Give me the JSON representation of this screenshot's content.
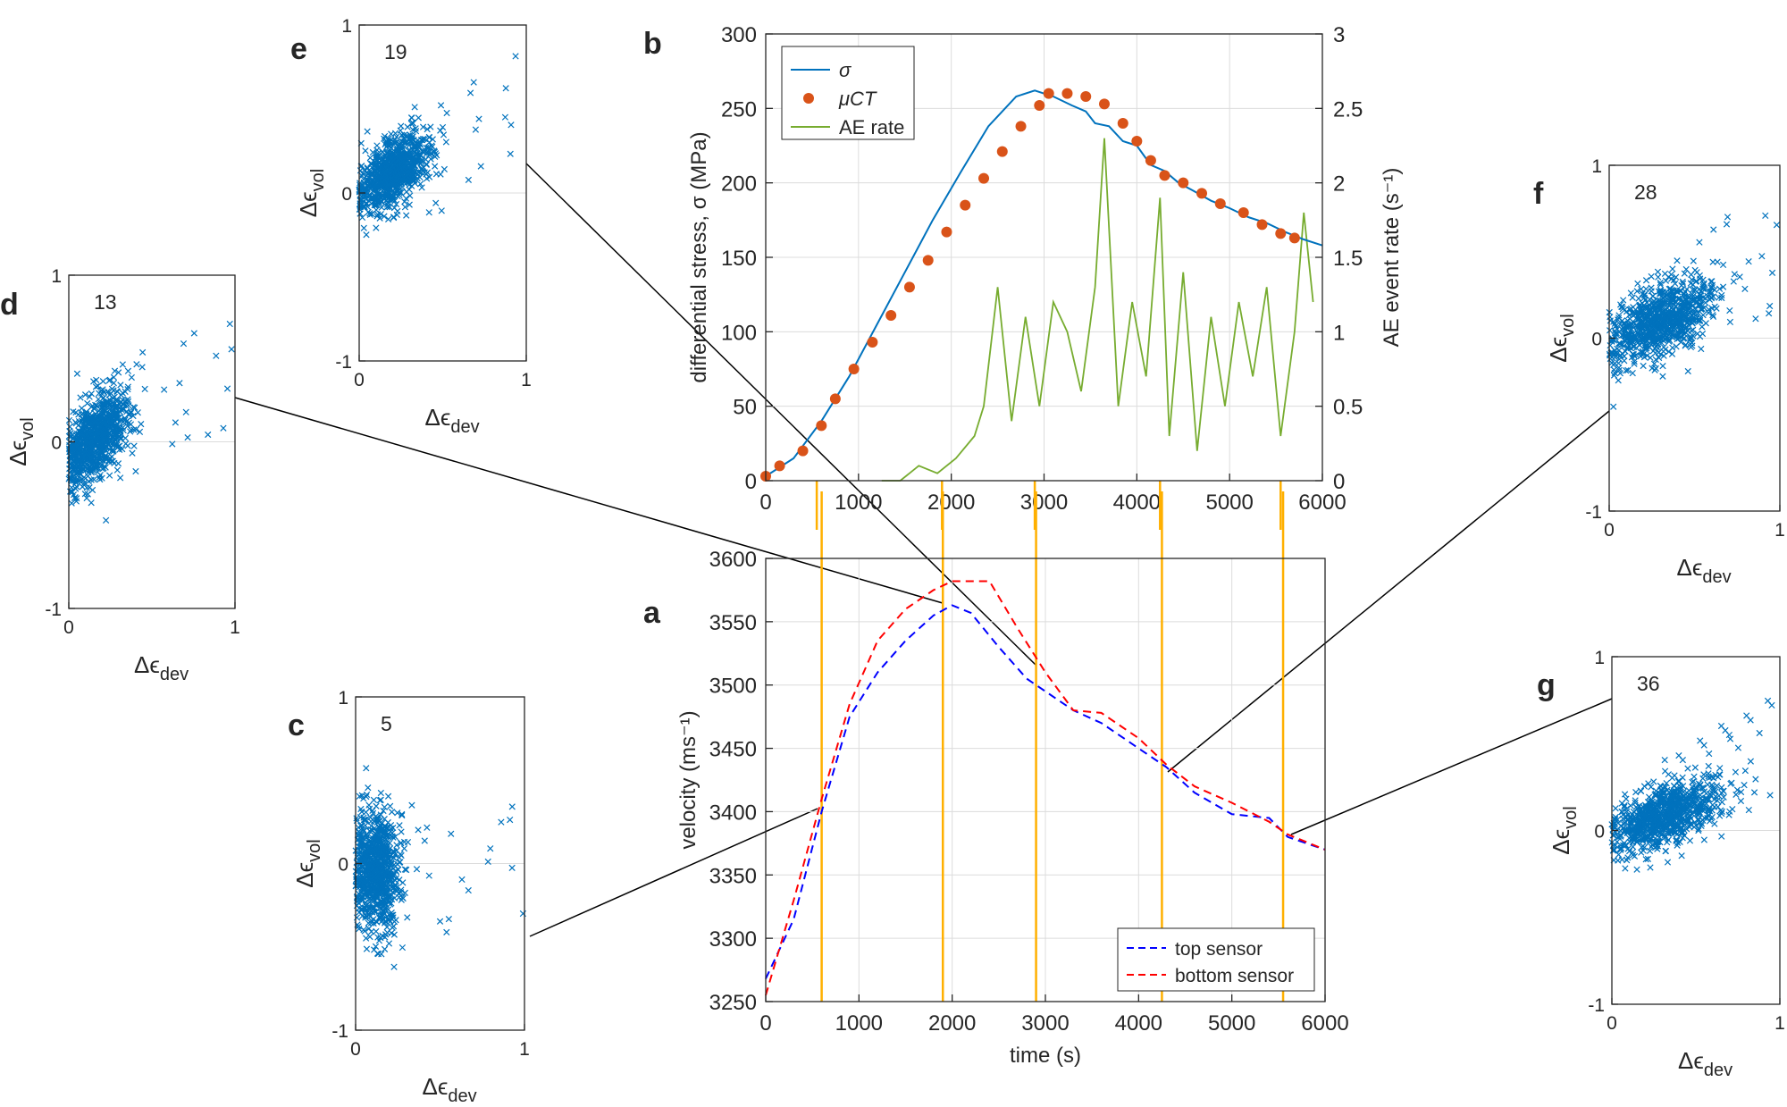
{
  "chart_data": [
    {
      "panel": "b",
      "type": "line",
      "xlabel": "time (s)",
      "ylabel": "differential stress, σ (MPa)",
      "ylabel_right": "AE event rate (s⁻¹)",
      "xlim": [
        0,
        6000
      ],
      "ylim": [
        0,
        300
      ],
      "ylim_right": [
        0,
        3
      ],
      "xticks": [
        "0",
        "1000",
        "2000",
        "3000",
        "4000",
        "5000",
        "6000"
      ],
      "yticks": [
        "0",
        "50",
        "100",
        "150",
        "200",
        "250",
        "300"
      ],
      "yticks_right": [
        "0",
        "0.5",
        "1",
        "1.5",
        "2",
        "2.5",
        "3"
      ],
      "grid": true,
      "legend": "top-left",
      "series": [
        {
          "name": "σ",
          "color": "#0072BD",
          "style": "solid",
          "x": [
            0,
            300,
            600,
            900,
            1200,
            1500,
            1800,
            2100,
            2400,
            2700,
            2900,
            3100,
            3300,
            3450,
            3550,
            3700,
            3850,
            4000,
            4150,
            4300,
            4450,
            4600,
            4800,
            5000,
            5200,
            5400,
            5600,
            5800,
            6000
          ],
          "y": [
            3,
            15,
            40,
            70,
            105,
            140,
            175,
            207,
            238,
            258,
            262,
            258,
            252,
            248,
            240,
            238,
            228,
            225,
            212,
            208,
            200,
            195,
            188,
            183,
            177,
            173,
            167,
            162,
            158
          ]
        },
        {
          "name": "μCT",
          "color": "#D95319",
          "style": "markers",
          "x": [
            0,
            150,
            400,
            600,
            750,
            950,
            1150,
            1350,
            1550,
            1750,
            1950,
            2150,
            2350,
            2550,
            2750,
            2950,
            3050,
            3250,
            3450,
            3650,
            3850,
            4000,
            4150,
            4300,
            4500,
            4700,
            4900,
            5150,
            5350,
            5550,
            5700
          ],
          "y": [
            3,
            10,
            20,
            37,
            55,
            75,
            93,
            111,
            130,
            148,
            167,
            185,
            203,
            221,
            238,
            252,
            260,
            260,
            258,
            253,
            240,
            228,
            215,
            205,
            200,
            193,
            186,
            180,
            172,
            166,
            163
          ]
        },
        {
          "name": "AE rate",
          "color": "#77AC30",
          "style": "solid",
          "x": [
            1250,
            1450,
            1650,
            1850,
            2050,
            2250,
            2350,
            2500,
            2650,
            2800,
            2950,
            3100,
            3250,
            3400,
            3550,
            3650,
            3800,
            3950,
            4100,
            4250,
            4350,
            4500,
            4650,
            4800,
            4950,
            5100,
            5250,
            5400,
            5550,
            5700,
            5800,
            5900
          ],
          "y": [
            0.0,
            0.0,
            0.1,
            0.05,
            0.15,
            0.3,
            0.5,
            1.3,
            0.4,
            1.1,
            0.5,
            1.2,
            1.0,
            0.6,
            1.3,
            2.3,
            0.5,
            1.2,
            0.7,
            1.9,
            0.3,
            1.4,
            0.2,
            1.1,
            0.5,
            1.2,
            0.7,
            1.3,
            0.3,
            1.0,
            1.8,
            1.2
          ]
        }
      ],
      "event_lines_x": [
        550,
        1900,
        2900,
        4250,
        5550
      ]
    },
    {
      "panel": "a",
      "type": "line",
      "xlabel": "time (s)",
      "ylabel": "velocity (ms⁻¹)",
      "xlim": [
        0,
        6000
      ],
      "ylim": [
        3250,
        3600
      ],
      "xticks": [
        "0",
        "1000",
        "2000",
        "3000",
        "4000",
        "5000",
        "6000"
      ],
      "yticks": [
        "3250",
        "3300",
        "3350",
        "3400",
        "3450",
        "3500",
        "3550",
        "3600"
      ],
      "grid": true,
      "legend": "bottom-right",
      "series": [
        {
          "name": "top sensor",
          "color": "#0000FF",
          "style": "dashed",
          "x": [
            0,
            300,
            600,
            900,
            1200,
            1500,
            1800,
            2000,
            2200,
            2500,
            2800,
            3000,
            3300,
            3600,
            4000,
            4300,
            4600,
            5000,
            5400,
            5600,
            6000
          ],
          "y": [
            3268,
            3315,
            3400,
            3475,
            3510,
            3535,
            3555,
            3563,
            3557,
            3530,
            3505,
            3495,
            3480,
            3470,
            3450,
            3435,
            3415,
            3398,
            3395,
            3380,
            3370
          ]
        },
        {
          "name": "bottom sensor",
          "color": "#FF0000",
          "style": "dashed",
          "x": [
            0,
            300,
            600,
            900,
            1200,
            1500,
            1800,
            2000,
            2400,
            2700,
            3000,
            3300,
            3600,
            4000,
            4300,
            4600,
            5000,
            5400,
            5600,
            6000
          ],
          "y": [
            3255,
            3330,
            3410,
            3485,
            3535,
            3560,
            3575,
            3582,
            3582,
            3545,
            3510,
            3480,
            3478,
            3458,
            3437,
            3420,
            3407,
            3392,
            3382,
            3370
          ]
        }
      ],
      "event_lines_x": [
        600,
        1900,
        2900,
        4250,
        5550
      ]
    },
    {
      "panel": "c",
      "type": "scatter",
      "annotation": "5",
      "xlabel": "Δϵ",
      "xlabel_sub": "dev",
      "ylabel": "Δϵ",
      "ylabel_sub": "vol",
      "xlim": [
        0,
        1
      ],
      "ylim": [
        -1,
        1
      ],
      "xticks": [
        "0",
        "1"
      ],
      "yticks": [
        "-1",
        "0",
        "1"
      ],
      "cluster": {
        "center": [
          0.12,
          -0.05
        ],
        "spread": [
          0.07,
          0.18
        ]
      }
    },
    {
      "panel": "d",
      "type": "scatter",
      "annotation": "13",
      "xlabel": "Δϵ",
      "xlabel_sub": "dev",
      "ylabel": "Δϵ",
      "ylabel_sub": "vol",
      "xlim": [
        0,
        1
      ],
      "ylim": [
        -1,
        1
      ],
      "xticks": [
        "0",
        "1"
      ],
      "yticks": [
        "-1",
        "0",
        "1"
      ],
      "cluster": {
        "center": [
          0.16,
          0.02
        ],
        "spread": [
          0.1,
          0.14
        ]
      }
    },
    {
      "panel": "e",
      "type": "scatter",
      "annotation": "19",
      "xlabel": "Δϵ",
      "xlabel_sub": "dev",
      "ylabel": "Δϵ",
      "ylabel_sub": "vol",
      "xlim": [
        0,
        1
      ],
      "ylim": [
        -1,
        1
      ],
      "xticks": [
        "0",
        "1"
      ],
      "yticks": [
        "-1",
        "0",
        "1"
      ],
      "cluster": {
        "center": [
          0.2,
          0.12
        ],
        "spread": [
          0.11,
          0.12
        ]
      }
    },
    {
      "panel": "f",
      "type": "scatter",
      "annotation": "28",
      "xlabel": "Δϵ",
      "xlabel_sub": "dev",
      "ylabel": "Δϵ",
      "ylabel_sub": "vol",
      "xlim": [
        0,
        1
      ],
      "ylim": [
        -1,
        1
      ],
      "xticks": [
        "0",
        "1"
      ],
      "yticks": [
        "-1",
        "0",
        "1"
      ],
      "cluster": {
        "center": [
          0.3,
          0.1
        ],
        "spread": [
          0.15,
          0.12
        ]
      }
    },
    {
      "panel": "g",
      "type": "scatter",
      "annotation": "36",
      "xlabel": "Δϵ",
      "xlabel_sub": "dev",
      "ylabel": "Δϵ",
      "ylabel_sub": "vol",
      "xlim": [
        0,
        1
      ],
      "ylim": [
        -1,
        1
      ],
      "xticks": [
        "0",
        "1"
      ],
      "yticks": [
        "-1",
        "0",
        "1"
      ],
      "cluster": {
        "center": [
          0.32,
          0.08
        ],
        "spread": [
          0.16,
          0.1
        ]
      }
    }
  ],
  "colors": {
    "event_line": "#FFB000",
    "scatter": "#0072BD",
    "connector": "#000000"
  }
}
